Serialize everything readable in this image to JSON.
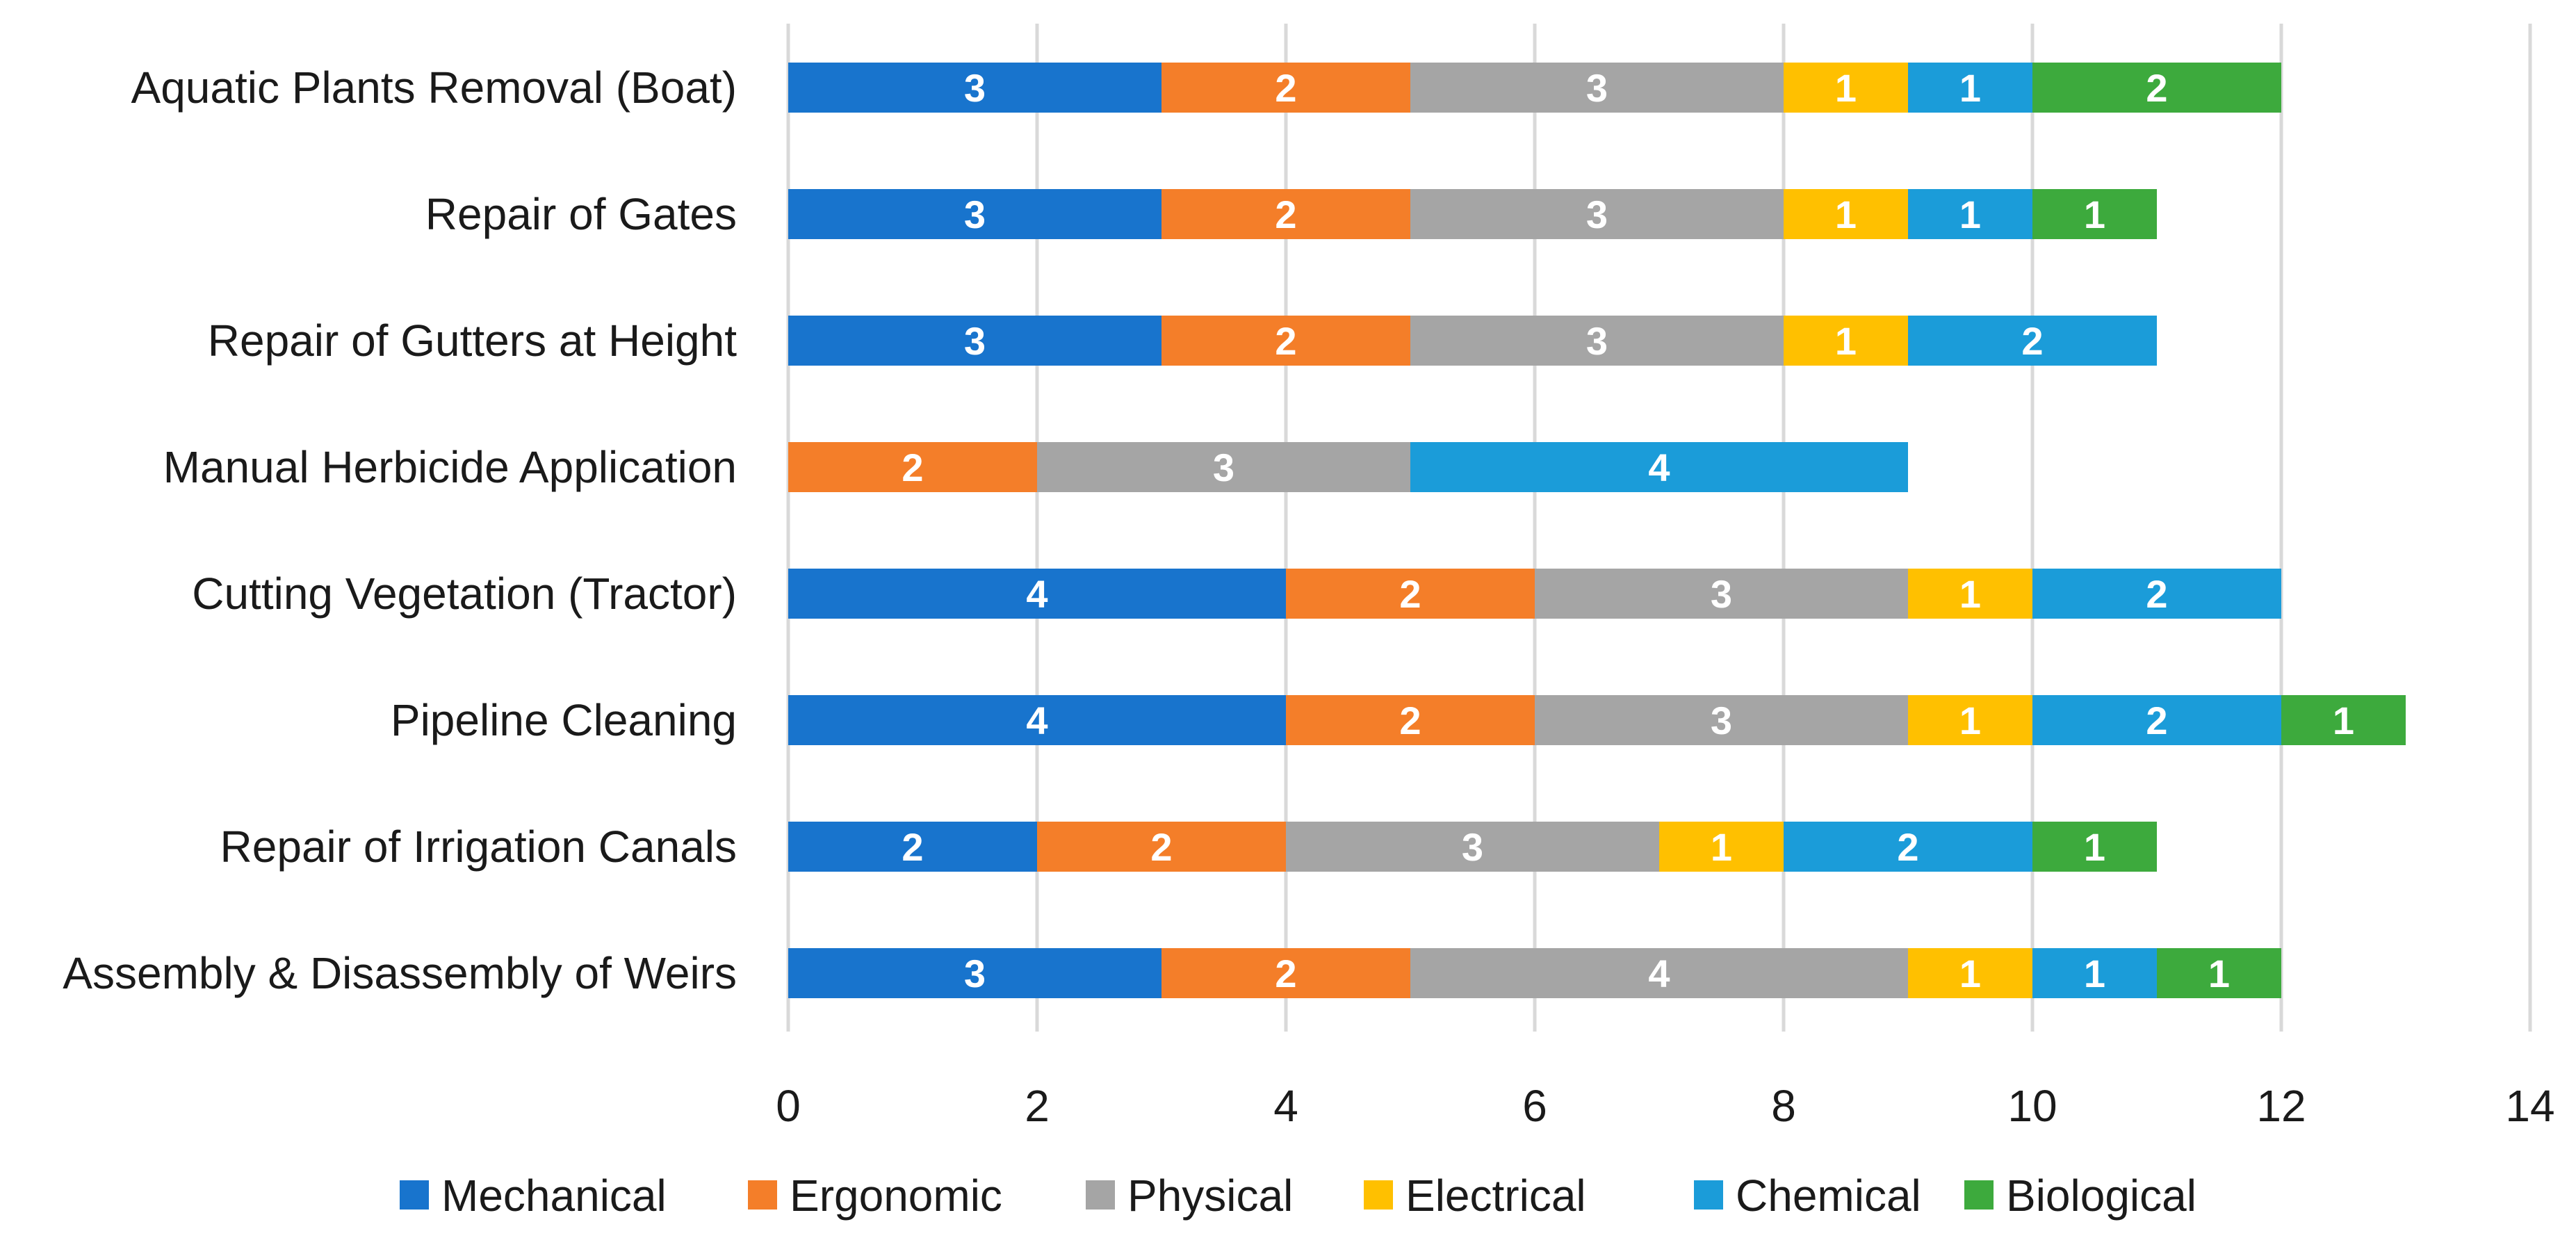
{
  "chart_data": {
    "type": "bar",
    "orientation": "horizontal",
    "stacked": true,
    "title": "",
    "xlabel": "",
    "ylabel": "",
    "xlim": [
      0,
      14
    ],
    "xticks": [
      0,
      2,
      4,
      6,
      8,
      10,
      12,
      14
    ],
    "grid": "vertical",
    "legend_position": "bottom",
    "categories": [
      "Aquatic Plants Removal (Boat)",
      "Repair of Gates",
      "Repair of Gutters at Height",
      "Manual Herbicide Application",
      "Cutting Vegetation (Tractor)",
      "Pipeline Cleaning",
      "Repair of Irrigation Canals",
      "Assembly & Disassembly of Weirs"
    ],
    "series": [
      {
        "name": "Mechanical",
        "color": "#1874CD",
        "values": [
          3,
          3,
          3,
          0,
          4,
          4,
          2,
          3
        ]
      },
      {
        "name": "Ergonomic",
        "color": "#F47E29",
        "values": [
          2,
          2,
          2,
          2,
          2,
          2,
          2,
          2
        ]
      },
      {
        "name": "Physical",
        "color": "#A5A5A5",
        "values": [
          3,
          3,
          3,
          3,
          3,
          3,
          3,
          4
        ]
      },
      {
        "name": "Electrical",
        "color": "#FFC000",
        "values": [
          1,
          1,
          1,
          0,
          1,
          1,
          1,
          1
        ]
      },
      {
        "name": "Chemical",
        "color": "#1B9CD9",
        "values": [
          1,
          1,
          2,
          4,
          2,
          2,
          2,
          1
        ]
      },
      {
        "name": "Biological",
        "color": "#3DAA3D",
        "values": [
          2,
          1,
          0,
          0,
          0,
          1,
          1,
          1
        ]
      }
    ]
  }
}
